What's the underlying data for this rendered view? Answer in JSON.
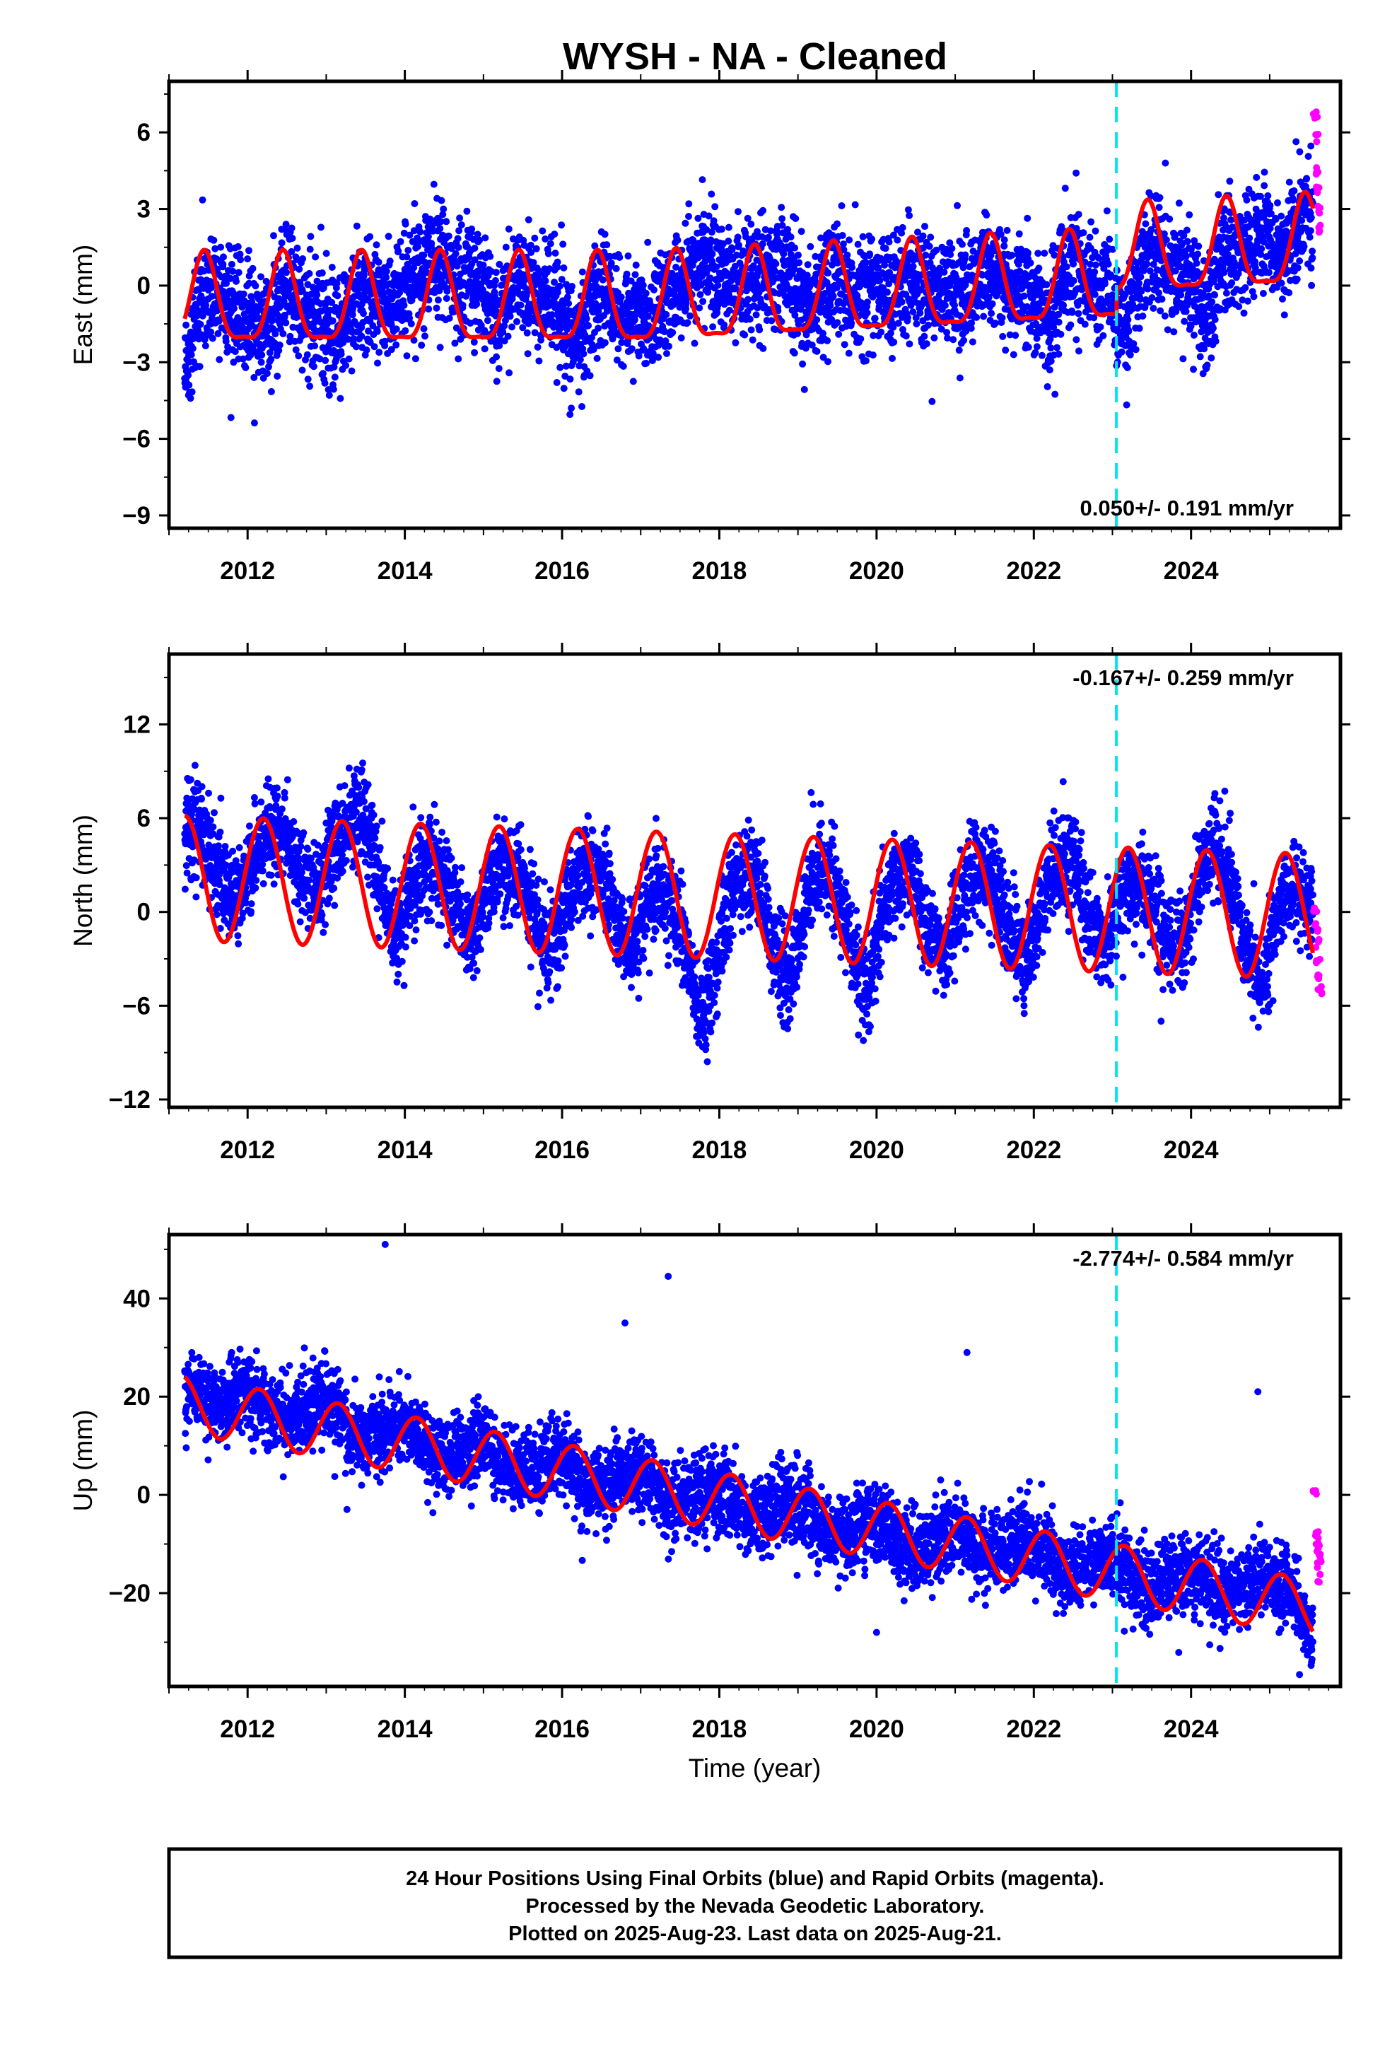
{
  "title": "WYSH  - NA - Cleaned",
  "caption": {
    "lines": [
      "24 Hour Positions Using Final Orbits (blue) and Rapid Orbits (magenta).",
      "Processed by the Nevada Geodetic Laboratory.",
      "Plotted on 2025-Aug-23. Last data on 2025-Aug-21."
    ]
  },
  "colors": {
    "final_orbits": "#0000ff",
    "rapid_orbits": "#ff00ff",
    "model": "#ff0000",
    "equipment_change": "#00e5ee",
    "frame": "#000000"
  },
  "chart_data": [
    {
      "type": "scatter",
      "name": "east",
      "ylabel": "East (mm)",
      "xlabel": "",
      "xlim": [
        2011.0,
        2025.9
      ],
      "ylim": [
        -9.5,
        8.0
      ],
      "yticks": [
        -9,
        -6,
        -3,
        0,
        3,
        6
      ],
      "ytick_labels": [
        "−9",
        "−6",
        "−3",
        "0",
        "3",
        "6"
      ],
      "xticks": [
        2012,
        2014,
        2016,
        2018,
        2020,
        2022,
        2024
      ],
      "xtick_labels": [
        "2012",
        "2014",
        "2016",
        "2018",
        "2020",
        "2022",
        "2024"
      ],
      "rate_text": "0.050+/- 0.191 mm/yr",
      "rate_position": "bottom-right",
      "equipment_change": 2023.05,
      "final_orbits": {
        "start": 2011.2,
        "end": 2025.55,
        "offset_after_change": 1.0,
        "scatter_sd": 1.1,
        "x": [
          2011.2,
          2011.4,
          2011.7,
          2012.0,
          2012.3,
          2012.5,
          2012.9,
          2013.2,
          2013.5,
          2013.9,
          2014.2,
          2014.5,
          2014.9,
          2015.2,
          2015.5,
          2015.9,
          2016.2,
          2016.5,
          2016.9,
          2017.2,
          2017.5,
          2017.8,
          2018.2,
          2018.5,
          2018.8,
          2019.2,
          2019.5,
          2019.9,
          2020.2,
          2020.5,
          2020.9,
          2021.2,
          2021.5,
          2021.9,
          2022.2,
          2022.5,
          2022.9,
          2023.2,
          2023.5,
          2023.9,
          2024.2,
          2024.5,
          2024.9,
          2025.2,
          2025.5
        ],
        "y": [
          -4.5,
          -2.0,
          0.0,
          -0.5,
          -3.0,
          -0.5,
          -0.5,
          -2.0,
          -1.0,
          0.5,
          2.0,
          0.0,
          2.5,
          -1.0,
          -0.5,
          1.0,
          -3.0,
          -1.0,
          -0.5,
          -1.0,
          -1.0,
          3.5,
          0.5,
          -0.5,
          2.5,
          -1.0,
          -0.5,
          1.0,
          0.0,
          -1.0,
          1.0,
          0.0,
          -0.5,
          1.0,
          -2.0,
          0.0,
          1.0,
          -3.0,
          0.0,
          1.0,
          -3.0,
          0.5,
          3.0,
          1.5,
          2.5
        ]
      },
      "rapid_orbits": {
        "x": [
          2025.58,
          2025.6,
          2025.61,
          2025.62,
          2025.63,
          2025.64
        ],
        "y": [
          6.7,
          5.8,
          4.5,
          3.8,
          3.0,
          2.2
        ]
      },
      "model": {
        "seasonal": {
          "mean": -0.8,
          "amp": 1.7,
          "phase": 0.45,
          "half_amp": 0.5
        },
        "trend_after_2017": 0.15,
        "offset_after_change": 1.0
      }
    },
    {
      "type": "scatter",
      "name": "north",
      "ylabel": "North (mm)",
      "xlabel": "",
      "xlim": [
        2011.0,
        2025.9
      ],
      "ylim": [
        -12.5,
        16.5
      ],
      "yticks": [
        -12,
        -6,
        0,
        6,
        12
      ],
      "ytick_labels": [
        "−12",
        "−6",
        "0",
        "6",
        "12"
      ],
      "xticks": [
        2012,
        2014,
        2016,
        2018,
        2020,
        2022,
        2024
      ],
      "xtick_labels": [
        "2012",
        "2014",
        "2016",
        "2018",
        "2020",
        "2022",
        "2024"
      ],
      "rate_text": "-0.167+/- 0.259 mm/yr",
      "rate_position": "top-right",
      "equipment_change": 2023.05,
      "final_orbits": {
        "start": 2011.2,
        "end": 2025.55,
        "scatter_sd": 1.5,
        "x": [
          2011.2,
          2011.5,
          2011.9,
          2012.2,
          2012.5,
          2012.9,
          2013.2,
          2013.5,
          2013.9,
          2014.2,
          2014.5,
          2014.9,
          2015.2,
          2015.5,
          2015.9,
          2016.2,
          2016.5,
          2016.9,
          2017.2,
          2017.5,
          2017.8,
          2018.2,
          2018.5,
          2018.9,
          2019.2,
          2019.5,
          2019.9,
          2020.2,
          2020.5,
          2020.9,
          2021.2,
          2021.5,
          2021.9,
          2022.2,
          2022.5,
          2022.9,
          2023.2,
          2023.5,
          2023.9,
          2024.2,
          2024.5,
          2024.9,
          2025.2,
          2025.5
        ],
        "y": [
          5.5,
          6.5,
          1.0,
          3.0,
          8.0,
          2.5,
          4.0,
          10.0,
          -2.0,
          0.5,
          4.0,
          -2.0,
          1.0,
          3.5,
          -4.0,
          0.5,
          5.0,
          -3.5,
          -1.0,
          -1.0,
          -10.0,
          0.0,
          4.0,
          -7.5,
          1.0,
          3.5,
          -7.5,
          -0.5,
          4.0,
          -4.0,
          0.5,
          4.0,
          -4.0,
          0.5,
          6.5,
          -2.5,
          0.0,
          2.0,
          -3.0,
          3.5,
          5.0,
          -7.5,
          0.0,
          1.5
        ]
      },
      "rapid_orbits": {
        "x": [
          2025.58,
          2025.6,
          2025.61,
          2025.62,
          2025.63,
          2025.64
        ],
        "y": [
          0.0,
          -1.0,
          -2.0,
          -3.0,
          -4.0,
          -5.0
        ]
      },
      "model": {
        "seasonal": {
          "mean": 1.0,
          "amp": 4.0,
          "phase": 0.2,
          "trend": -0.17,
          "ref": 2018.0
        }
      }
    },
    {
      "type": "scatter",
      "name": "up",
      "ylabel": "Up (mm)",
      "xlabel": "Time (year)",
      "xlim": [
        2011.0,
        2025.9
      ],
      "ylim": [
        -39,
        53
      ],
      "yticks": [
        -20,
        0,
        20,
        40
      ],
      "ytick_labels": [
        "−20",
        "0",
        "20",
        "40"
      ],
      "xticks": [
        2012,
        2014,
        2016,
        2018,
        2020,
        2022,
        2024
      ],
      "xtick_labels": [
        "2012",
        "2014",
        "2016",
        "2018",
        "2020",
        "2022",
        "2024"
      ],
      "rate_text": "-2.774+/- 0.584 mm/yr",
      "rate_position": "top-right",
      "equipment_change": 2023.05,
      "final_orbits": {
        "start": 2011.2,
        "end": 2025.55,
        "scatter_sd": 4.0,
        "x": [
          2011.2,
          2011.8,
          2012.3,
          2012.9,
          2013.3,
          2013.8,
          2014.3,
          2014.8,
          2015.3,
          2015.8,
          2016.3,
          2016.8,
          2017.3,
          2017.8,
          2018.3,
          2018.8,
          2019.3,
          2019.8,
          2020.3,
          2020.8,
          2021.3,
          2021.8,
          2022.3,
          2022.8,
          2023.3,
          2023.8,
          2024.3,
          2024.8,
          2025.3,
          2025.5
        ],
        "y": [
          20.0,
          25.0,
          15.0,
          25.0,
          10.0,
          18.0,
          5.0,
          15.0,
          2.0,
          12.0,
          -2.0,
          10.0,
          -5.0,
          6.0,
          -8.0,
          3.0,
          -12.0,
          -2.0,
          -15.0,
          -5.0,
          -15.0,
          -5.0,
          -18.0,
          -8.0,
          -22.0,
          -12.0,
          -22.0,
          -12.0,
          -25.0,
          -28.0
        ]
      },
      "outliers": {
        "x": [
          2013.75,
          2017.35,
          2016.8,
          2021.15,
          2024.85,
          2020.0
        ],
        "y": [
          51.0,
          44.5,
          35.0,
          29.0,
          21.0,
          -28.0
        ]
      },
      "rapid_orbits": {
        "x": [
          2025.58,
          2025.6,
          2025.61,
          2025.62,
          2025.63,
          2025.64
        ],
        "y": [
          1.0,
          -8.0,
          -10.0,
          -12.0,
          -14.0,
          -17.0
        ]
      },
      "model": {
        "seasonal": {
          "mean": 18.5,
          "amp": 5.8,
          "phase": 0.15,
          "trend": -2.9,
          "ref": 2011.2
        }
      }
    }
  ]
}
